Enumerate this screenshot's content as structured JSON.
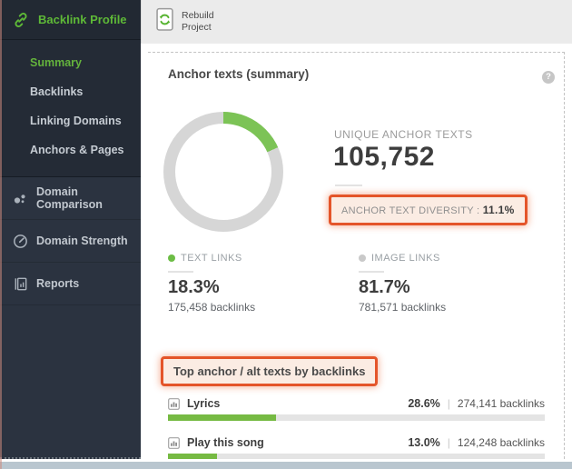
{
  "colors": {
    "accent_green": "#5eb937",
    "summary_green": "#64b33c",
    "donut_green": "#7cc356",
    "donut_track": "#d6d6d6",
    "bar_green": "#76ba43",
    "highlight_orange": "#e4552a",
    "sidebar_bg": "#2b3340",
    "bullet_text_links": "#6cbd45",
    "bullet_image_links": "#c9c9c9"
  },
  "sidebar": {
    "profile_label": "Backlink Profile",
    "submenu": [
      {
        "label": "Summary",
        "active": true
      },
      {
        "label": "Backlinks",
        "active": false
      },
      {
        "label": "Linking Domains",
        "active": false
      },
      {
        "label": "Anchors & Pages",
        "active": false
      }
    ],
    "sections": [
      {
        "label": "Domain Comparison",
        "icon": "dots-cluster-icon"
      },
      {
        "label": "Domain Strength",
        "icon": "gauge-icon"
      },
      {
        "label": "Reports",
        "icon": "report-document-icon"
      }
    ]
  },
  "topbar": {
    "rebuild_line1": "Rebuild",
    "rebuild_line2": "Project",
    "rebuild_icon": "document-refresh-icon"
  },
  "panel": {
    "title": "Anchor texts (summary)",
    "help_label": "?",
    "unique": {
      "label": "UNIQUE ANCHOR TEXTS",
      "value": "105,752"
    },
    "diversity": {
      "label": "ANCHOR TEXT DIVERSITY :",
      "value": "11.1%"
    },
    "donut": {
      "text_links_pct": 18.3
    },
    "stats": [
      {
        "label": "TEXT LINKS",
        "pct": "18.3%",
        "backlinks": "175,458 backlinks",
        "bullet": "#6cbd45"
      },
      {
        "label": "IMAGE LINKS",
        "pct": "81.7%",
        "backlinks": "781,571 backlinks",
        "bullet": "#c9c9c9"
      }
    ],
    "top_anchors": {
      "header": "Top anchor / alt texts by backlinks",
      "items": [
        {
          "label": "Lyrics",
          "pct": "28.6%",
          "pct_value": 28.6,
          "backlinks": "274,141 backlinks"
        },
        {
          "label": "Play this song",
          "pct": "13.0%",
          "pct_value": 13.0,
          "backlinks": "124,248 backlinks"
        }
      ]
    }
  },
  "chart_data": [
    {
      "type": "pie",
      "title": "Anchor texts (summary) — link type share",
      "labels": [
        "TEXT LINKS",
        "IMAGE LINKS"
      ],
      "values": [
        18.3,
        81.7
      ],
      "unit": "%",
      "notes": "donut, green segment = text links starting at 12 o'clock"
    },
    {
      "type": "bar",
      "title": "Top anchor / alt texts by backlinks",
      "categories": [
        "Lyrics",
        "Play this song"
      ],
      "values": [
        28.6,
        13.0
      ],
      "unit": "%",
      "backlinks": [
        274141,
        124248
      ],
      "xlim": [
        0,
        100
      ]
    }
  ]
}
